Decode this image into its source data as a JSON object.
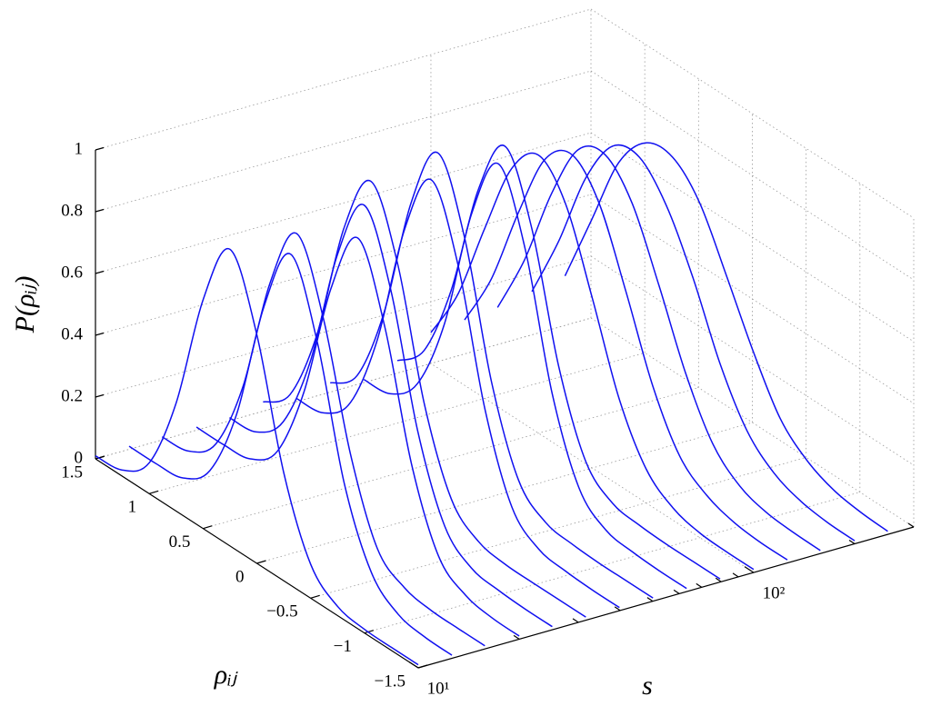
{
  "chart_data": {
    "type": "waterfall3d",
    "color": "#1010f0",
    "grid": true,
    "zlabel": "P(ρᵢⱼ)",
    "ylabel": "ρᵢⱼ",
    "xlabel": "s",
    "xlim": [
      10,
      300
    ],
    "xlog": true,
    "xticks": [
      {
        "value": 10,
        "label": "10¹"
      },
      {
        "value": 100,
        "label": "10²"
      }
    ],
    "xminorticks": [
      20,
      30,
      40,
      50,
      60,
      70,
      80,
      90,
      200,
      300
    ],
    "ylim": [
      -1.5,
      1.5
    ],
    "yticks": [
      {
        "value": -1.5,
        "label": "−1.5"
      },
      {
        "value": -1,
        "label": "−1"
      },
      {
        "value": -0.5,
        "label": "−0.5"
      },
      0,
      0.5,
      1,
      1.5
    ],
    "zlim": [
      0,
      1
    ],
    "zticks": [
      0,
      0.2,
      0.4,
      0.6,
      0.8,
      1
    ],
    "rho": [
      -1.5,
      -1.25,
      -1,
      -0.75,
      -0.5,
      -0.25,
      0,
      0.25,
      0.5,
      0.75,
      1,
      1.25,
      1.5
    ],
    "series": [
      {
        "s": 10,
        "values": [
          0.01,
          0.01,
          0.012,
          0.03,
          0.11,
          0.35,
          0.74,
          0.96,
          0.74,
          0.35,
          0.1,
          0.02,
          0.01
        ]
      },
      {
        "s": 12.6,
        "values": [
          0.01,
          0.012,
          0.03,
          0.11,
          0.34,
          0.74,
          0.97,
          0.74,
          0.34,
          0.1,
          0.02,
          0.01,
          0.01
        ]
      },
      {
        "s": 15.8,
        "values": [
          0.01,
          0.01,
          0.012,
          0.03,
          0.1,
          0.35,
          0.73,
          0.95,
          0.73,
          0.34,
          0.1,
          0.02,
          0.01
        ]
      },
      {
        "s": 20,
        "values": [
          0.01,
          0.012,
          0.03,
          0.1,
          0.34,
          0.73,
          0.96,
          0.74,
          0.35,
          0.1,
          0.02,
          0.01,
          0.01
        ]
      },
      {
        "s": 25.1,
        "values": [
          0.01,
          0.01,
          0.015,
          0.03,
          0.11,
          0.36,
          0.76,
          0.98,
          0.76,
          0.36,
          0.11,
          0.02,
          0.01
        ]
      },
      {
        "s": 31.6,
        "values": [
          0.01,
          0.01,
          0.01,
          0.012,
          0.03,
          0.11,
          0.36,
          0.76,
          0.97,
          0.76,
          0.36,
          0.11,
          0.03
        ]
      },
      {
        "s": 39.8,
        "values": [
          0.01,
          0.01,
          0.015,
          0.03,
          0.11,
          0.37,
          0.78,
          1.0,
          0.78,
          0.37,
          0.11,
          0.02,
          0.01
        ]
      },
      {
        "s": 50.1,
        "values": [
          0.01,
          0.01,
          0.01,
          0.015,
          0.03,
          0.11,
          0.37,
          0.78,
          1.0,
          0.78,
          0.37,
          0.11,
          0.03
        ]
      },
      {
        "s": 63.1,
        "values": [
          0.01,
          0.01,
          0.015,
          0.03,
          0.11,
          0.36,
          0.77,
          0.99,
          0.77,
          0.36,
          0.11,
          0.02,
          0.01
        ]
      },
      {
        "s": 79.4,
        "values": [
          0.01,
          0.01,
          0.01,
          0.015,
          0.03,
          0.11,
          0.36,
          0.75,
          0.96,
          0.76,
          0.38,
          0.13,
          0.04
        ]
      },
      {
        "s": 100,
        "values": [
          0.01,
          0.01,
          0.015,
          0.04,
          0.11,
          0.28,
          0.55,
          0.8,
          0.9,
          0.8,
          0.55,
          0.28,
          0.1
        ]
      },
      {
        "s": 126,
        "values": [
          0.01,
          0.01,
          0.02,
          0.05,
          0.12,
          0.29,
          0.54,
          0.77,
          0.87,
          0.8,
          0.57,
          0.3,
          0.11
        ]
      },
      {
        "s": 158,
        "values": [
          0.01,
          0.012,
          0.02,
          0.05,
          0.13,
          0.3,
          0.53,
          0.74,
          0.84,
          0.8,
          0.6,
          0.33,
          0.12
        ]
      },
      {
        "s": 200,
        "values": [
          0.01,
          0.012,
          0.025,
          0.06,
          0.14,
          0.3,
          0.52,
          0.7,
          0.8,
          0.78,
          0.62,
          0.36,
          0.14
        ]
      },
      {
        "s": 251,
        "values": [
          0.01,
          0.015,
          0.03,
          0.07,
          0.15,
          0.31,
          0.5,
          0.68,
          0.77,
          0.76,
          0.64,
          0.4,
          0.16
        ]
      }
    ]
  }
}
